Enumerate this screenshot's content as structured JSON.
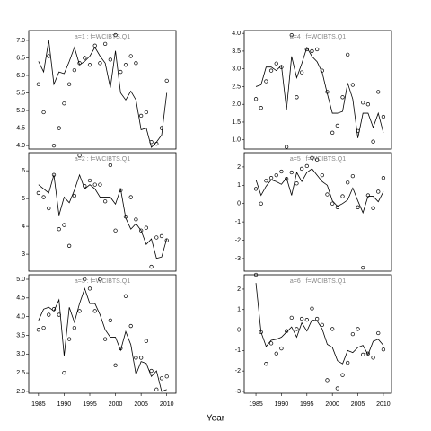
{
  "xlabel": "Year",
  "chart_data": [
    {
      "type": "line",
      "title": "a=1 : f=WCIBTS.Q1",
      "x": [
        1985,
        1986,
        1987,
        1988,
        1989,
        1990,
        1991,
        1992,
        1993,
        1994,
        1995,
        1996,
        1997,
        1998,
        1999,
        2000,
        2001,
        2002,
        2003,
        2004,
        2005,
        2006,
        2007,
        2008,
        2009,
        2010
      ],
      "xlim": [
        1983.1,
        2011.8
      ],
      "ylim": [
        3.9,
        7.28
      ],
      "yticks": [
        {
          "value": 4,
          "label": "4.0"
        },
        4.5,
        {
          "value": 5,
          "label": "5.0"
        },
        5.5,
        {
          "value": 6,
          "label": "6.0"
        },
        6.5,
        {
          "value": 7,
          "label": "7.0"
        }
      ],
      "series": [
        {
          "mark": "line",
          "color": "#000000",
          "values": [
            6.4,
            6.1,
            7.0,
            5.75,
            6.1,
            6.05,
            6.4,
            6.8,
            6.3,
            6.4,
            6.55,
            6.8,
            6.55,
            6.35,
            5.65,
            6.7,
            5.5,
            5.3,
            5.55,
            5.3,
            4.45,
            4.5,
            3.95,
            4.1,
            4.3,
            5.5
          ]
        },
        {
          "mark": "points",
          "color": "#000000",
          "values": [
            5.75,
            4.95,
            6.55,
            4.0,
            4.5,
            5.2,
            5.75,
            6.15,
            6.35,
            6.5,
            6.3,
            6.85,
            6.35,
            6.9,
            6.45,
            7.15,
            6.1,
            6.3,
            6.55,
            6.35,
            4.85,
            4.95,
            4.1,
            4.05,
            4.5,
            5.85
          ]
        }
      ]
    },
    {
      "type": "line",
      "title": "a=2 : f=WCIBTS.Q1",
      "x": [
        1985,
        1986,
        1987,
        1988,
        1989,
        1990,
        1991,
        1992,
        1993,
        1994,
        1995,
        1996,
        1997,
        1998,
        1999,
        2000,
        2001,
        2002,
        2003,
        2004,
        2005,
        2006,
        2007,
        2008,
        2009,
        2010
      ],
      "xlim": [
        1983.1,
        2011.8
      ],
      "ylim": [
        2.39,
        6.65
      ],
      "yticks": [
        3,
        4,
        5,
        6
      ],
      "series": [
        {
          "mark": "line",
          "color": "#000000",
          "values": [
            5.5,
            5.35,
            5.2,
            5.85,
            4.4,
            5.05,
            4.85,
            5.3,
            5.85,
            5.35,
            5.5,
            5.35,
            5.05,
            5.05,
            5.05,
            4.8,
            5.35,
            4.3,
            3.9,
            4.1,
            3.85,
            3.35,
            3.55,
            2.85,
            2.9,
            3.55
          ]
        },
        {
          "mark": "points",
          "color": "#000000",
          "values": [
            5.2,
            5.05,
            4.65,
            5.85,
            3.9,
            4.05,
            3.3,
            5.1,
            6.55,
            5.45,
            5.65,
            5.5,
            5.5,
            4.9,
            6.2,
            3.85,
            5.3,
            4.35,
            5.05,
            4.25,
            3.85,
            3.95,
            2.55,
            3.6,
            3.65,
            3.5
          ]
        }
      ]
    },
    {
      "type": "line",
      "title": "a=3 : f=WCIBTS.Q1",
      "x": [
        1985,
        1986,
        1987,
        1988,
        1989,
        1990,
        1991,
        1992,
        1993,
        1994,
        1995,
        1996,
        1997,
        1998,
        1999,
        2000,
        2001,
        2002,
        2003,
        2004,
        2005,
        2006,
        2007,
        2008,
        2009,
        2010
      ],
      "xlim": [
        1983.1,
        2011.8
      ],
      "ylim": [
        1.95,
        5.12
      ],
      "xticks": [
        1985,
        1990,
        1995,
        2000,
        2005,
        2010
      ],
      "yticks": [
        {
          "value": 2,
          "label": "2.0"
        },
        2.5,
        {
          "value": 3,
          "label": "3.0"
        },
        3.5,
        {
          "value": 4,
          "label": "4.0"
        },
        4.5,
        {
          "value": 5,
          "label": "5.0"
        }
      ],
      "series": [
        {
          "mark": "line",
          "color": "#000000",
          "values": [
            3.9,
            4.2,
            4.25,
            4.15,
            4.45,
            2.95,
            4.25,
            3.85,
            4.35,
            4.75,
            4.35,
            4.35,
            4.05,
            3.65,
            3.45,
            3.45,
            3.1,
            3.6,
            3.25,
            2.45,
            2.8,
            2.75,
            2.4,
            2.55,
            2.0,
            2.05
          ]
        },
        {
          "mark": "points",
          "color": "#000000",
          "values": [
            3.65,
            3.7,
            4.05,
            4.2,
            4.05,
            2.5,
            3.4,
            3.7,
            4.15,
            5.0,
            4.75,
            4.15,
            5.0,
            3.4,
            3.9,
            2.7,
            3.15,
            4.55,
            3.75,
            2.9,
            2.9,
            3.35,
            2.55,
            2.05,
            2.35,
            2.4
          ]
        }
      ]
    },
    {
      "type": "line",
      "title": "a=4 : f=WCIBTS.Q1",
      "x": [
        1985,
        1986,
        1987,
        1988,
        1989,
        1990,
        1991,
        1992,
        1993,
        1994,
        1995,
        1996,
        1997,
        1998,
        1999,
        2000,
        2001,
        2002,
        2003,
        2004,
        2005,
        2006,
        2007,
        2008,
        2009,
        2010
      ],
      "xlim": [
        1982.7,
        2011.6
      ],
      "ylim": [
        0.74,
        4.08
      ],
      "yticks": [
        {
          "value": 1,
          "label": "1.0"
        },
        1.5,
        {
          "value": 2,
          "label": "2.0"
        },
        2.5,
        {
          "value": 3,
          "label": "3.0"
        },
        3.5,
        {
          "value": 4,
          "label": "4.0"
        }
      ],
      "series": [
        {
          "mark": "line",
          "color": "#000000",
          "values": [
            2.5,
            2.55,
            3.05,
            3.05,
            2.95,
            3.1,
            1.85,
            3.35,
            2.75,
            3.15,
            3.6,
            3.35,
            3.2,
            2.9,
            2.3,
            1.75,
            1.75,
            1.8,
            2.6,
            2.15,
            1.05,
            1.75,
            1.75,
            1.35,
            1.75,
            1.2
          ]
        },
        {
          "mark": "points",
          "color": "#000000",
          "values": [
            2.15,
            1.9,
            2.65,
            2.95,
            3.15,
            3.05,
            0.8,
            3.95,
            2.2,
            2.9,
            3.55,
            3.5,
            3.55,
            2.95,
            2.35,
            1.2,
            1.4,
            2.2,
            3.4,
            2.55,
            1.25,
            2.05,
            2.0,
            0.95,
            2.35,
            1.65
          ]
        }
      ]
    },
    {
      "type": "line",
      "title": "a=5 : f=WCIBTS.Q1",
      "x": [
        1985,
        1986,
        1987,
        1988,
        1989,
        1990,
        1991,
        1992,
        1993,
        1994,
        1995,
        1996,
        1997,
        1998,
        1999,
        2000,
        2001,
        2002,
        2003,
        2004,
        2005,
        2006,
        2007,
        2008,
        2009,
        2010
      ],
      "xlim": [
        1982.7,
        2011.6
      ],
      "ylim": [
        -3.69,
        2.78
      ],
      "yticks": [
        -3,
        -2,
        -1,
        0,
        1,
        2
      ],
      "series": [
        {
          "mark": "line",
          "color": "#000000",
          "values": [
            1.3,
            0.45,
            0.95,
            1.3,
            1.2,
            1.05,
            1.4,
            0.45,
            1.7,
            1.2,
            1.7,
            1.9,
            1.55,
            1.2,
            1.0,
            0.15,
            -0.15,
            0.0,
            0.2,
            0.85,
            0.15,
            -0.5,
            0.4,
            0.4,
            0.1,
            0.65
          ]
        },
        {
          "mark": "points",
          "color": "#000000",
          "values": [
            0.8,
            0.0,
            1.25,
            1.4,
            1.55,
            1.75,
            1.35,
            1.7,
            1.1,
            1.9,
            2.05,
            2.5,
            2.4,
            1.55,
            0.5,
            0.0,
            -0.2,
            0.4,
            1.15,
            1.5,
            -0.2,
            -3.5,
            0.45,
            -0.25,
            0.65,
            1.4
          ]
        }
      ]
    },
    {
      "type": "line",
      "title": "a=6 : f=WCIBTS.Q1",
      "x": [
        1985,
        1986,
        1987,
        1988,
        1989,
        1990,
        1991,
        1992,
        1993,
        1994,
        1995,
        1996,
        1997,
        1998,
        1999,
        2000,
        2001,
        2002,
        2003,
        2004,
        2005,
        2006,
        2007,
        2008,
        2009,
        2010
      ],
      "xlim": [
        1982.7,
        2011.6
      ],
      "ylim": [
        -3.09,
        2.7
      ],
      "xticks": [
        1985,
        1990,
        1995,
        2000,
        2005,
        2010
      ],
      "yticks": [
        -3,
        -2,
        -1,
        0,
        1,
        2
      ],
      "series": [
        {
          "mark": "line",
          "color": "#000000",
          "values": [
            2.3,
            -0.1,
            -0.8,
            -0.5,
            -0.45,
            -0.35,
            -0.1,
            0.15,
            -0.35,
            0.35,
            -0.05,
            0.5,
            0.45,
            0.05,
            -0.7,
            -0.85,
            -1.5,
            -1.65,
            -1.0,
            -1.1,
            -0.85,
            -0.75,
            -1.2,
            -0.55,
            -0.45,
            -0.75
          ]
        },
        {
          "mark": "points",
          "color": "#000000",
          "values": [
            2.7,
            -0.1,
            -1.65,
            -0.65,
            -1.15,
            -0.9,
            -0.05,
            0.6,
            0.05,
            0.55,
            0.5,
            1.05,
            0.55,
            0.25,
            -2.45,
            0.05,
            -2.85,
            -2.2,
            -1.6,
            -0.2,
            0.05,
            -1.2,
            -1.15,
            -1.35,
            -0.15,
            -0.95
          ]
        }
      ]
    }
  ]
}
